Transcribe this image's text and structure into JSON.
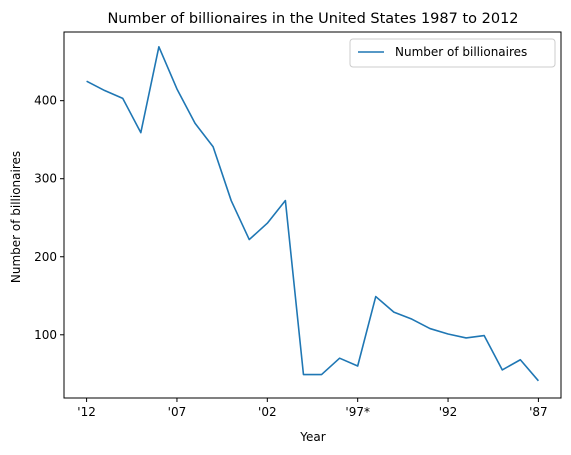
{
  "chart_data": {
    "type": "line",
    "title": "Number of billionaires in the United States 1987 to 2012",
    "xlabel": "Year",
    "ylabel": "Number of billionaires",
    "x_tick_labels": [
      "'12",
      "'07",
      "'02",
      "'97*",
      "'92",
      "'87"
    ],
    "x_tick_positions": [
      0,
      5,
      10,
      15,
      20,
      25
    ],
    "xlim": [
      -1.25,
      26.25
    ],
    "ylim": [
      19,
      488
    ],
    "y_ticks": [
      100,
      200,
      300,
      400
    ],
    "legend_position": "top-right",
    "grid": false,
    "series": [
      {
        "name": "Number of billionaires",
        "color": "#1f77b4",
        "values": [
          425,
          413,
          403,
          359,
          469,
          415,
          371,
          341,
          272,
          222,
          243,
          272,
          49,
          49,
          70,
          60,
          149,
          129,
          120,
          108,
          101,
          96,
          99,
          55,
          68,
          41
        ]
      }
    ]
  }
}
